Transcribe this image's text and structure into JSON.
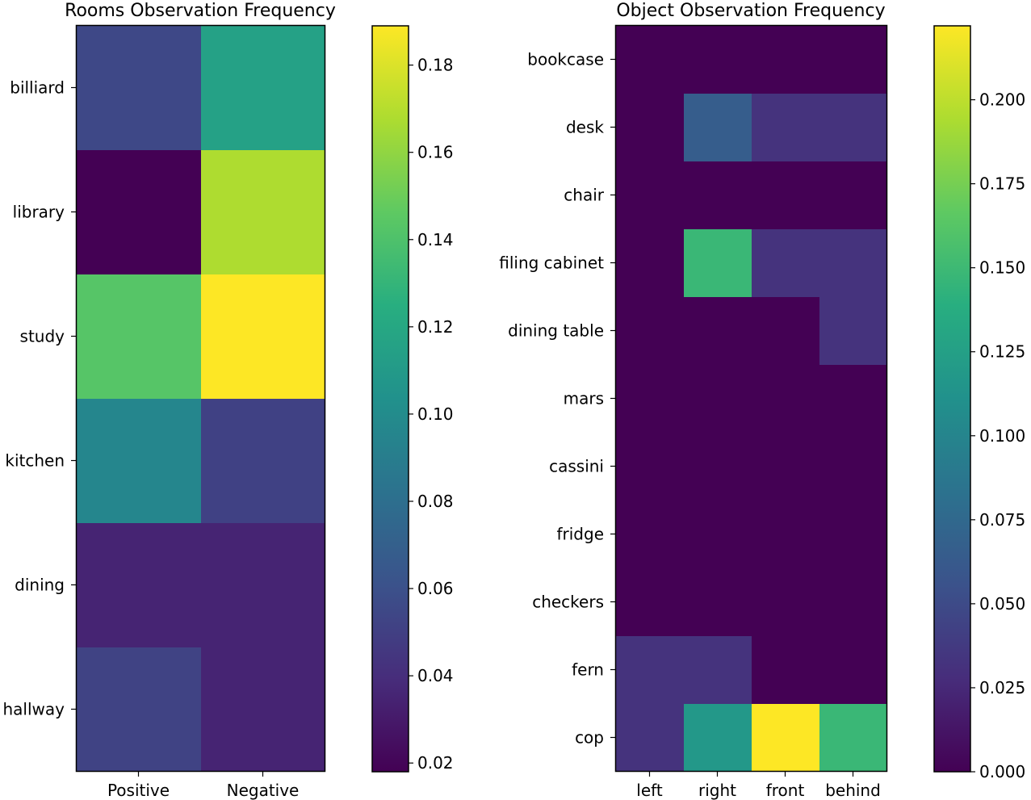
{
  "chart_data": [
    {
      "type": "heatmap",
      "title": "Rooms Observation Frequency",
      "x_categories": [
        "Positive",
        "Negative"
      ],
      "y_categories": [
        "billiard",
        "library",
        "study",
        "kitchen",
        "dining",
        "hallway"
      ],
      "values": [
        [
          0.055,
          0.115
        ],
        [
          0.018,
          0.168
        ],
        [
          0.143,
          0.189
        ],
        [
          0.096,
          0.051
        ],
        [
          0.035,
          0.035
        ],
        [
          0.052,
          0.035
        ]
      ],
      "colorbar": {
        "vmin": 0.018,
        "vmax": 0.189,
        "ticks": [
          0.02,
          0.04,
          0.06,
          0.08,
          0.1,
          0.12,
          0.14,
          0.16,
          0.18
        ],
        "tick_labels": [
          "0.02",
          "0.04",
          "0.06",
          "0.08",
          "0.10",
          "0.12",
          "0.14",
          "0.16",
          "0.18"
        ]
      },
      "colormap": "viridis"
    },
    {
      "type": "heatmap",
      "title": "Object Observation Frequency",
      "x_categories": [
        "left",
        "right",
        "front",
        "behind"
      ],
      "y_categories": [
        "bookcase",
        "desk",
        "chair",
        "filing cabinet",
        "dining table",
        "mars",
        "cassini",
        "fridge",
        "checkers",
        "fern",
        "cop"
      ],
      "values": [
        [
          0,
          0,
          0,
          0
        ],
        [
          0,
          0.065,
          0.032,
          0.032
        ],
        [
          0,
          0,
          0,
          0
        ],
        [
          0,
          0.148,
          0.032,
          0.032
        ],
        [
          0,
          0,
          0,
          0.032
        ],
        [
          0,
          0,
          0,
          0
        ],
        [
          0,
          0,
          0,
          0
        ],
        [
          0,
          0,
          0,
          0
        ],
        [
          0,
          0,
          0,
          0
        ],
        [
          0.032,
          0.032,
          0,
          0
        ],
        [
          0.032,
          0.118,
          0.222,
          0.148
        ]
      ],
      "colorbar": {
        "vmin": 0,
        "vmax": 0.222,
        "ticks": [
          0,
          0.025,
          0.05,
          0.075,
          0.1,
          0.125,
          0.15,
          0.175,
          0.2
        ],
        "tick_labels": [
          "0.000",
          "0.025",
          "0.050",
          "0.075",
          "0.100",
          "0.125",
          "0.150",
          "0.175",
          "0.200"
        ]
      },
      "colormap": "viridis"
    }
  ]
}
